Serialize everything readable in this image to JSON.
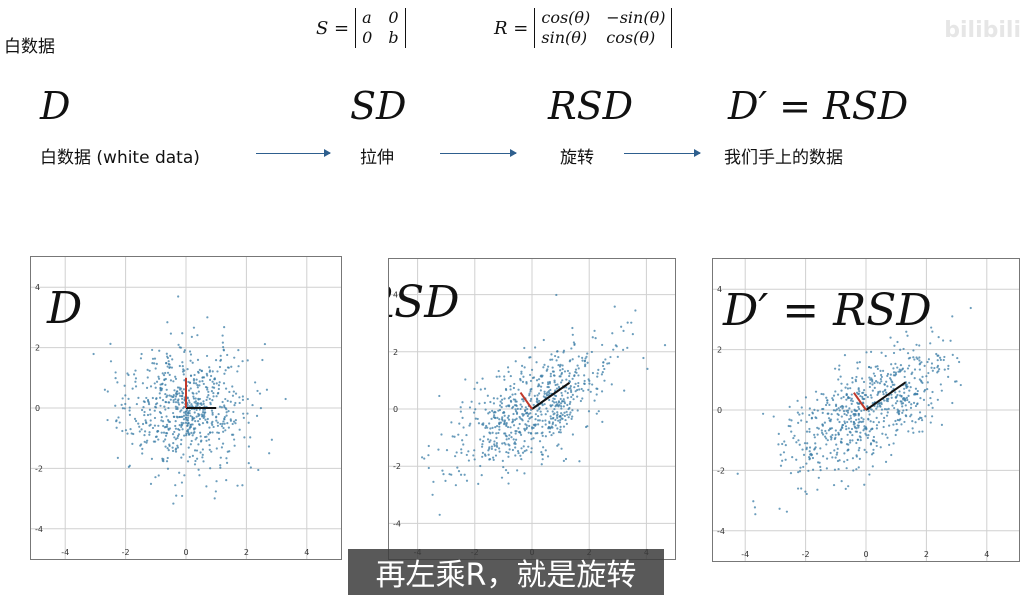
{
  "title": "白数据",
  "watermark": "bilibili",
  "formula_s": {
    "lhs": "S =",
    "m": [
      "a",
      "0",
      "0",
      "b"
    ]
  },
  "formula_r": {
    "lhs": "R =",
    "m": [
      "cos(θ)",
      "−sin(θ)",
      "sin(θ)",
      "cos(θ)"
    ]
  },
  "steps": [
    {
      "symbol": "D",
      "label": "白数据 (white data)"
    },
    {
      "symbol": "SD",
      "label": "拉伸"
    },
    {
      "symbol": "RSD",
      "label": "旋转"
    },
    {
      "symbol": "D′ = RSD",
      "label": "我们手上的数据"
    }
  ],
  "panels": [
    {
      "label": "D",
      "axis_ticks": [
        "-4",
        "-2",
        "0",
        "2",
        "4"
      ],
      "transform": {
        "sx": 1,
        "sy": 1,
        "theta_deg": 0
      }
    },
    {
      "label": "RSD",
      "axis_ticks": [
        "-4",
        "-2",
        "0",
        "2",
        "4"
      ],
      "transform": {
        "sx": 1.6,
        "sy": 0.7,
        "theta_deg": 35
      }
    },
    {
      "label": "D′ = RSD",
      "axis_ticks": [
        "-4",
        "-2",
        "0",
        "2",
        "4"
      ],
      "transform": {
        "sx": 1.6,
        "sy": 0.7,
        "theta_deg": 35
      }
    }
  ],
  "subtitle": "再左乘R，就是旋转",
  "colors": {
    "points": "#3a7ca5",
    "arrow": "#2e5f8e",
    "axis_red": "#c0392b"
  }
}
